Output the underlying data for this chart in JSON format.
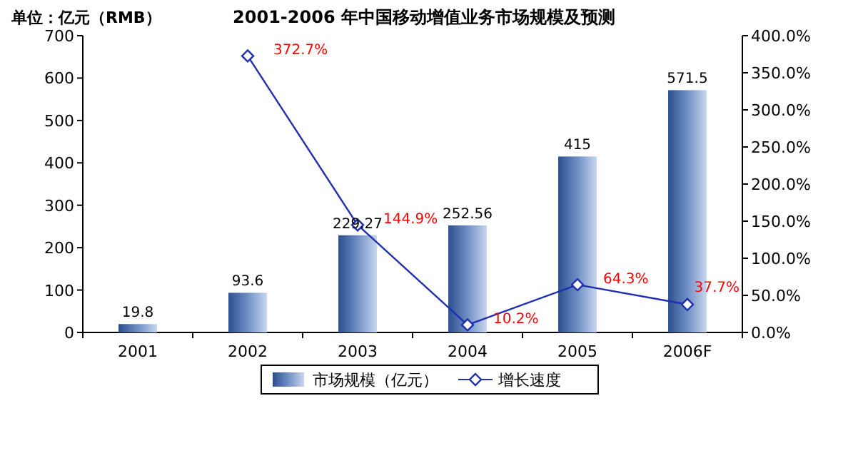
{
  "chart_data": {
    "type": "bar",
    "title": "2001-2006 年中国移动增值业务市场规模及预测",
    "annotations": [
      "单位：亿元（RMB）"
    ],
    "categories": [
      "2001",
      "2002",
      "2003",
      "2004",
      "2005",
      "2006F"
    ],
    "series": [
      {
        "name": "市场规模（亿元）",
        "color": "#6f8fc4",
        "values": [
          19.8,
          93.6,
          229.27,
          252.56,
          415,
          571.5
        ],
        "value_labels": [
          "19.8",
          "93.6",
          "229.27",
          "252.56",
          "415",
          "571.5"
        ]
      },
      {
        "name": "增长速度",
        "type": "line",
        "axis": "y2",
        "color": "#1f2fb0",
        "marker": "diamond",
        "values": [
          null,
          372.7,
          144.9,
          10.2,
          64.3,
          37.7
        ],
        "value_labels": [
          null,
          "372.7%",
          "144.9%",
          "10.2%",
          "64.3%",
          "37.7%"
        ]
      }
    ],
    "ylim": [
      0,
      700
    ],
    "yticks": [
      0,
      100,
      200,
      300,
      400,
      500,
      600,
      700
    ],
    "y2lim": [
      0,
      400
    ],
    "y2ticks": [
      {
        "value": 0,
        "label": "0.0%"
      },
      {
        "value": 50,
        "label": "50.0%"
      },
      {
        "value": 100,
        "label": "100.0%"
      },
      {
        "value": 150,
        "label": "150.0%"
      },
      {
        "value": 200,
        "label": "200.0%"
      },
      {
        "value": 250,
        "label": "250.0%"
      },
      {
        "value": 300,
        "label": "300.0%"
      },
      {
        "value": 350,
        "label": "350.0%"
      },
      {
        "value": 400,
        "label": "400.0%"
      }
    ],
    "grid": false,
    "legend": "bottom"
  }
}
